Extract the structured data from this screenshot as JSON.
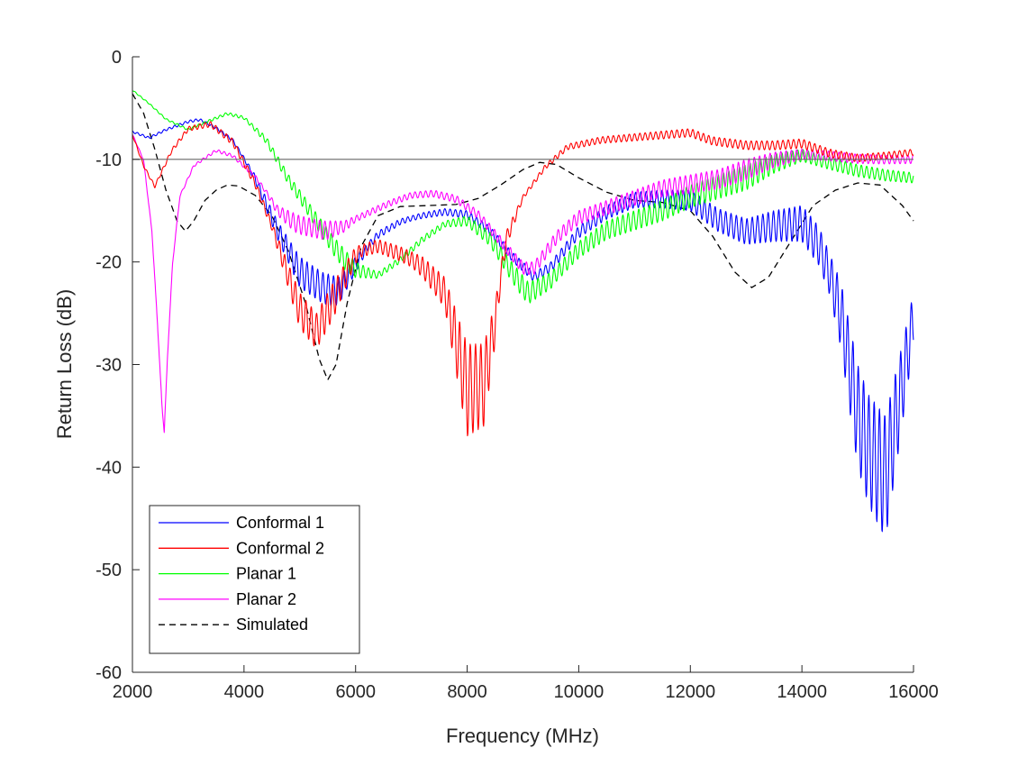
{
  "chart_data": {
    "type": "line",
    "title": "",
    "xlabel": "Frequency (MHz)",
    "ylabel": "Return Loss (dB)",
    "xlim": [
      2000,
      16000
    ],
    "ylim": [
      -60,
      0
    ],
    "xticks": [
      2000,
      4000,
      6000,
      8000,
      10000,
      12000,
      14000,
      16000
    ],
    "xtick_labels": [
      "2000",
      "4000",
      "6000",
      "8000",
      "10000",
      "12000",
      "14000",
      "16000"
    ],
    "yticks": [
      0,
      -10,
      -20,
      -30,
      -40,
      -50,
      -60
    ],
    "ytick_labels": [
      "0",
      "-10",
      "-20",
      "-30",
      "-40",
      "-50",
      "-60"
    ],
    "grid": false,
    "legend_position": "bottom-left",
    "reference_line": {
      "y": -10,
      "color": "#666666"
    },
    "series": [
      {
        "name": "Conformal 1",
        "color": "#0000ff",
        "style": "solid",
        "ripple": [
          [
            2000,
            0.2
          ],
          [
            4000,
            0.3
          ],
          [
            4500,
            1.5
          ],
          [
            5000,
            3.0
          ],
          [
            5600,
            3.0
          ],
          [
            6200,
            0.8
          ],
          [
            7000,
            0.5
          ],
          [
            8200,
            0.8
          ],
          [
            9500,
            1.0
          ],
          [
            11000,
            1.5
          ],
          [
            12000,
            2.0
          ],
          [
            13000,
            2.5
          ],
          [
            14500,
            4.0
          ],
          [
            15000,
            10.0
          ],
          [
            15500,
            12.0
          ],
          [
            16000,
            5.0
          ]
        ],
        "points": [
          [
            2000,
            -7.2
          ],
          [
            2300,
            -7.8
          ],
          [
            2600,
            -7.0
          ],
          [
            3000,
            -6.2
          ],
          [
            3200,
            -6.0
          ],
          [
            3500,
            -6.8
          ],
          [
            3800,
            -8.0
          ],
          [
            4200,
            -11.5
          ],
          [
            4600,
            -16.0
          ],
          [
            5000,
            -19.5
          ],
          [
            5400,
            -21.0
          ],
          [
            5700,
            -21.5
          ],
          [
            6000,
            -19.5
          ],
          [
            6400,
            -17.0
          ],
          [
            6800,
            -15.8
          ],
          [
            7200,
            -15.2
          ],
          [
            7600,
            -14.8
          ],
          [
            8000,
            -15.0
          ],
          [
            8400,
            -16.5
          ],
          [
            8800,
            -19.0
          ],
          [
            9200,
            -21.0
          ],
          [
            9500,
            -20.0
          ],
          [
            10000,
            -16.5
          ],
          [
            10500,
            -14.5
          ],
          [
            11000,
            -13.2
          ],
          [
            11500,
            -13.0
          ],
          [
            12000,
            -13.0
          ],
          [
            12500,
            -14.8
          ],
          [
            13000,
            -15.8
          ],
          [
            13500,
            -15.0
          ],
          [
            14000,
            -14.5
          ],
          [
            14300,
            -16.5
          ],
          [
            14700,
            -22.0
          ],
          [
            15000,
            -30.0
          ],
          [
            15200,
            -33.0
          ],
          [
            15500,
            -35.0
          ],
          [
            15800,
            -28.0
          ],
          [
            16000,
            -23.0
          ]
        ]
      },
      {
        "name": "Conformal 2",
        "color": "#ff0000",
        "style": "solid",
        "ripple": [
          [
            2000,
            0.2
          ],
          [
            4500,
            0.8
          ],
          [
            5000,
            3.5
          ],
          [
            5600,
            3.5
          ],
          [
            6100,
            1.2
          ],
          [
            7000,
            1.5
          ],
          [
            7600,
            3.0
          ],
          [
            8000,
            9.0
          ],
          [
            8300,
            8.0
          ],
          [
            8600,
            2.0
          ],
          [
            9000,
            0.4
          ],
          [
            10000,
            0.6
          ],
          [
            12000,
            0.8
          ],
          [
            14000,
            0.9
          ],
          [
            16000,
            0.6
          ]
        ],
        "points": [
          [
            2000,
            -7.5
          ],
          [
            2200,
            -10.5
          ],
          [
            2400,
            -12.5
          ],
          [
            2700,
            -9.0
          ],
          [
            3000,
            -6.8
          ],
          [
            3400,
            -6.3
          ],
          [
            3800,
            -8.0
          ],
          [
            4200,
            -12.0
          ],
          [
            4600,
            -17.5
          ],
          [
            5000,
            -23.0
          ],
          [
            5300,
            -25.0
          ],
          [
            5600,
            -22.0
          ],
          [
            6000,
            -18.5
          ],
          [
            6400,
            -17.8
          ],
          [
            6800,
            -18.5
          ],
          [
            7200,
            -19.5
          ],
          [
            7600,
            -21.5
          ],
          [
            8000,
            -28.0
          ],
          [
            8300,
            -28.0
          ],
          [
            8500,
            -24.0
          ],
          [
            8700,
            -17.0
          ],
          [
            9000,
            -13.5
          ],
          [
            9400,
            -10.5
          ],
          [
            9800,
            -8.5
          ],
          [
            10400,
            -7.8
          ],
          [
            11000,
            -7.5
          ],
          [
            11600,
            -7.2
          ],
          [
            12000,
            -7.0
          ],
          [
            12400,
            -7.8
          ],
          [
            13000,
            -8.2
          ],
          [
            13500,
            -8.2
          ],
          [
            14000,
            -8.0
          ],
          [
            14500,
            -9.0
          ],
          [
            15000,
            -9.5
          ],
          [
            15500,
            -9.3
          ],
          [
            16000,
            -9.0
          ]
        ]
      },
      {
        "name": "Planar 1",
        "color": "#00ff00",
        "style": "solid",
        "ripple": [
          [
            2000,
            0.1
          ],
          [
            4000,
            0.3
          ],
          [
            5000,
            1.2
          ],
          [
            5800,
            2.0
          ],
          [
            6400,
            0.6
          ],
          [
            7600,
            0.6
          ],
          [
            8500,
            1.5
          ],
          [
            9000,
            2.2
          ],
          [
            9600,
            1.5
          ],
          [
            10500,
            1.8
          ],
          [
            11500,
            2.0
          ],
          [
            12000,
            2.2
          ],
          [
            13000,
            2.5
          ],
          [
            14000,
            1.2
          ],
          [
            15000,
            1.2
          ],
          [
            16000,
            1.0
          ]
        ],
        "points": [
          [
            2000,
            -3.2
          ],
          [
            2300,
            -4.5
          ],
          [
            2600,
            -6.0
          ],
          [
            3000,
            -7.0
          ],
          [
            3300,
            -6.3
          ],
          [
            3700,
            -5.4
          ],
          [
            4000,
            -5.8
          ],
          [
            4400,
            -7.8
          ],
          [
            4800,
            -11.5
          ],
          [
            5200,
            -14.5
          ],
          [
            5600,
            -17.5
          ],
          [
            6000,
            -20.0
          ],
          [
            6400,
            -21.0
          ],
          [
            6800,
            -19.5
          ],
          [
            7200,
            -17.5
          ],
          [
            7600,
            -16.0
          ],
          [
            8000,
            -15.5
          ],
          [
            8400,
            -17.0
          ],
          [
            8800,
            -20.0
          ],
          [
            9100,
            -22.0
          ],
          [
            9500,
            -21.0
          ],
          [
            10000,
            -18.0
          ],
          [
            10500,
            -16.0
          ],
          [
            11000,
            -15.0
          ],
          [
            11500,
            -14.0
          ],
          [
            12000,
            -12.5
          ],
          [
            12500,
            -11.5
          ],
          [
            13000,
            -10.5
          ],
          [
            13500,
            -9.5
          ],
          [
            14000,
            -9.0
          ],
          [
            14500,
            -9.8
          ],
          [
            15000,
            -10.5
          ],
          [
            15500,
            -11.0
          ],
          [
            16000,
            -11.3
          ]
        ]
      },
      {
        "name": "Planar 2",
        "color": "#ff00ff",
        "style": "solid",
        "ripple": [
          [
            2000,
            0.1
          ],
          [
            4400,
            0.4
          ],
          [
            4900,
            1.8
          ],
          [
            5500,
            1.8
          ],
          [
            6000,
            0.6
          ],
          [
            7000,
            0.6
          ],
          [
            8200,
            0.8
          ],
          [
            9000,
            1.2
          ],
          [
            9800,
            1.3
          ],
          [
            11000,
            1.5
          ],
          [
            12000,
            1.8
          ],
          [
            13000,
            2.0
          ],
          [
            14000,
            1.0
          ],
          [
            16000,
            0.8
          ]
        ],
        "points": [
          [
            2000,
            -7.5
          ],
          [
            2200,
            -10.0
          ],
          [
            2350,
            -17.0
          ],
          [
            2450,
            -26.0
          ],
          [
            2530,
            -34.0
          ],
          [
            2570,
            -36.5
          ],
          [
            2630,
            -29.0
          ],
          [
            2720,
            -20.0
          ],
          [
            2850,
            -13.5
          ],
          [
            3100,
            -10.5
          ],
          [
            3500,
            -9.0
          ],
          [
            3800,
            -9.5
          ],
          [
            4200,
            -11.5
          ],
          [
            4600,
            -14.5
          ],
          [
            5000,
            -15.5
          ],
          [
            5400,
            -16.0
          ],
          [
            5800,
            -16.0
          ],
          [
            6200,
            -15.0
          ],
          [
            6600,
            -14.0
          ],
          [
            7000,
            -13.2
          ],
          [
            7400,
            -13.0
          ],
          [
            7800,
            -13.5
          ],
          [
            8200,
            -15.0
          ],
          [
            8600,
            -17.5
          ],
          [
            9000,
            -20.0
          ],
          [
            9200,
            -20.0
          ],
          [
            9600,
            -17.0
          ],
          [
            10000,
            -15.0
          ],
          [
            10500,
            -14.0
          ],
          [
            11000,
            -13.0
          ],
          [
            11500,
            -12.0
          ],
          [
            12000,
            -11.5
          ],
          [
            12500,
            -11.0
          ],
          [
            13000,
            -10.0
          ],
          [
            13500,
            -9.3
          ],
          [
            14000,
            -9.0
          ],
          [
            14500,
            -9.2
          ],
          [
            15000,
            -9.5
          ],
          [
            15500,
            -9.6
          ],
          [
            16000,
            -9.6
          ]
        ]
      },
      {
        "name": "Simulated",
        "color": "#000000",
        "style": "dashed",
        "points": [
          [
            2000,
            -3.6
          ],
          [
            2200,
            -5.5
          ],
          [
            2400,
            -9.0
          ],
          [
            2600,
            -13.0
          ],
          [
            2800,
            -16.0
          ],
          [
            2950,
            -17.0
          ],
          [
            3100,
            -16.0
          ],
          [
            3300,
            -14.0
          ],
          [
            3500,
            -13.0
          ],
          [
            3700,
            -12.5
          ],
          [
            3900,
            -12.6
          ],
          [
            4200,
            -13.5
          ],
          [
            4500,
            -15.5
          ],
          [
            4800,
            -19.0
          ],
          [
            5100,
            -24.0
          ],
          [
            5350,
            -29.5
          ],
          [
            5500,
            -31.5
          ],
          [
            5650,
            -30.0
          ],
          [
            5850,
            -24.0
          ],
          [
            6100,
            -18.5
          ],
          [
            6400,
            -15.5
          ],
          [
            6800,
            -14.6
          ],
          [
            7300,
            -14.5
          ],
          [
            7800,
            -14.4
          ],
          [
            8200,
            -13.8
          ],
          [
            8600,
            -12.5
          ],
          [
            9000,
            -11.0
          ],
          [
            9300,
            -10.3
          ],
          [
            9600,
            -10.5
          ],
          [
            10000,
            -11.8
          ],
          [
            10500,
            -13.2
          ],
          [
            11000,
            -14.0
          ],
          [
            11500,
            -14.2
          ],
          [
            12000,
            -15.0
          ],
          [
            12400,
            -17.5
          ],
          [
            12800,
            -21.0
          ],
          [
            13100,
            -22.5
          ],
          [
            13400,
            -21.5
          ],
          [
            13800,
            -18.0
          ],
          [
            14200,
            -14.5
          ],
          [
            14600,
            -13.0
          ],
          [
            15000,
            -12.3
          ],
          [
            15400,
            -12.5
          ],
          [
            15800,
            -14.5
          ],
          [
            16000,
            -16.0
          ]
        ]
      }
    ]
  }
}
